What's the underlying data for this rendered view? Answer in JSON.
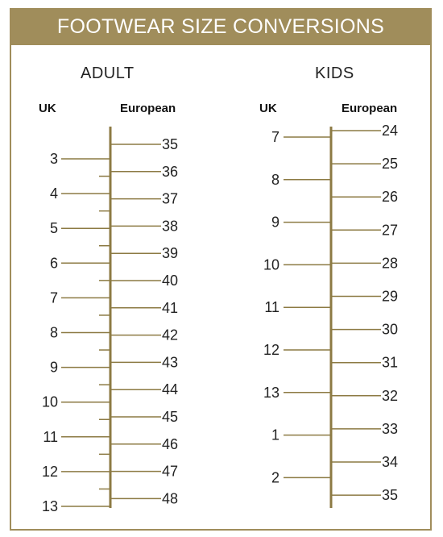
{
  "title": "FOOTWEAR SIZE CONVERSIONS",
  "colors": {
    "accent": "#a08d5b",
    "line": "#8c7a43",
    "text": "#222222"
  },
  "chart_data": [
    {
      "type": "scale",
      "title": "ADULT",
      "left_label": "UK",
      "right_label": "European",
      "left_ticks": [
        "3",
        "4",
        "5",
        "6",
        "7",
        "8",
        "9",
        "10",
        "11",
        "12",
        "13"
      ],
      "right_ticks": [
        "35",
        "36",
        "37",
        "38",
        "39",
        "40",
        "41",
        "42",
        "43",
        "44",
        "45",
        "46",
        "47",
        "48"
      ]
    },
    {
      "type": "scale",
      "title": "KIDS",
      "left_label": "UK",
      "right_label": "European",
      "left_ticks": [
        "7",
        "8",
        "9",
        "10",
        "11",
        "12",
        "13",
        "1",
        "2"
      ],
      "right_ticks": [
        "24",
        "25",
        "26",
        "27",
        "28",
        "29",
        "30",
        "31",
        "32",
        "33",
        "34",
        "35"
      ]
    }
  ]
}
